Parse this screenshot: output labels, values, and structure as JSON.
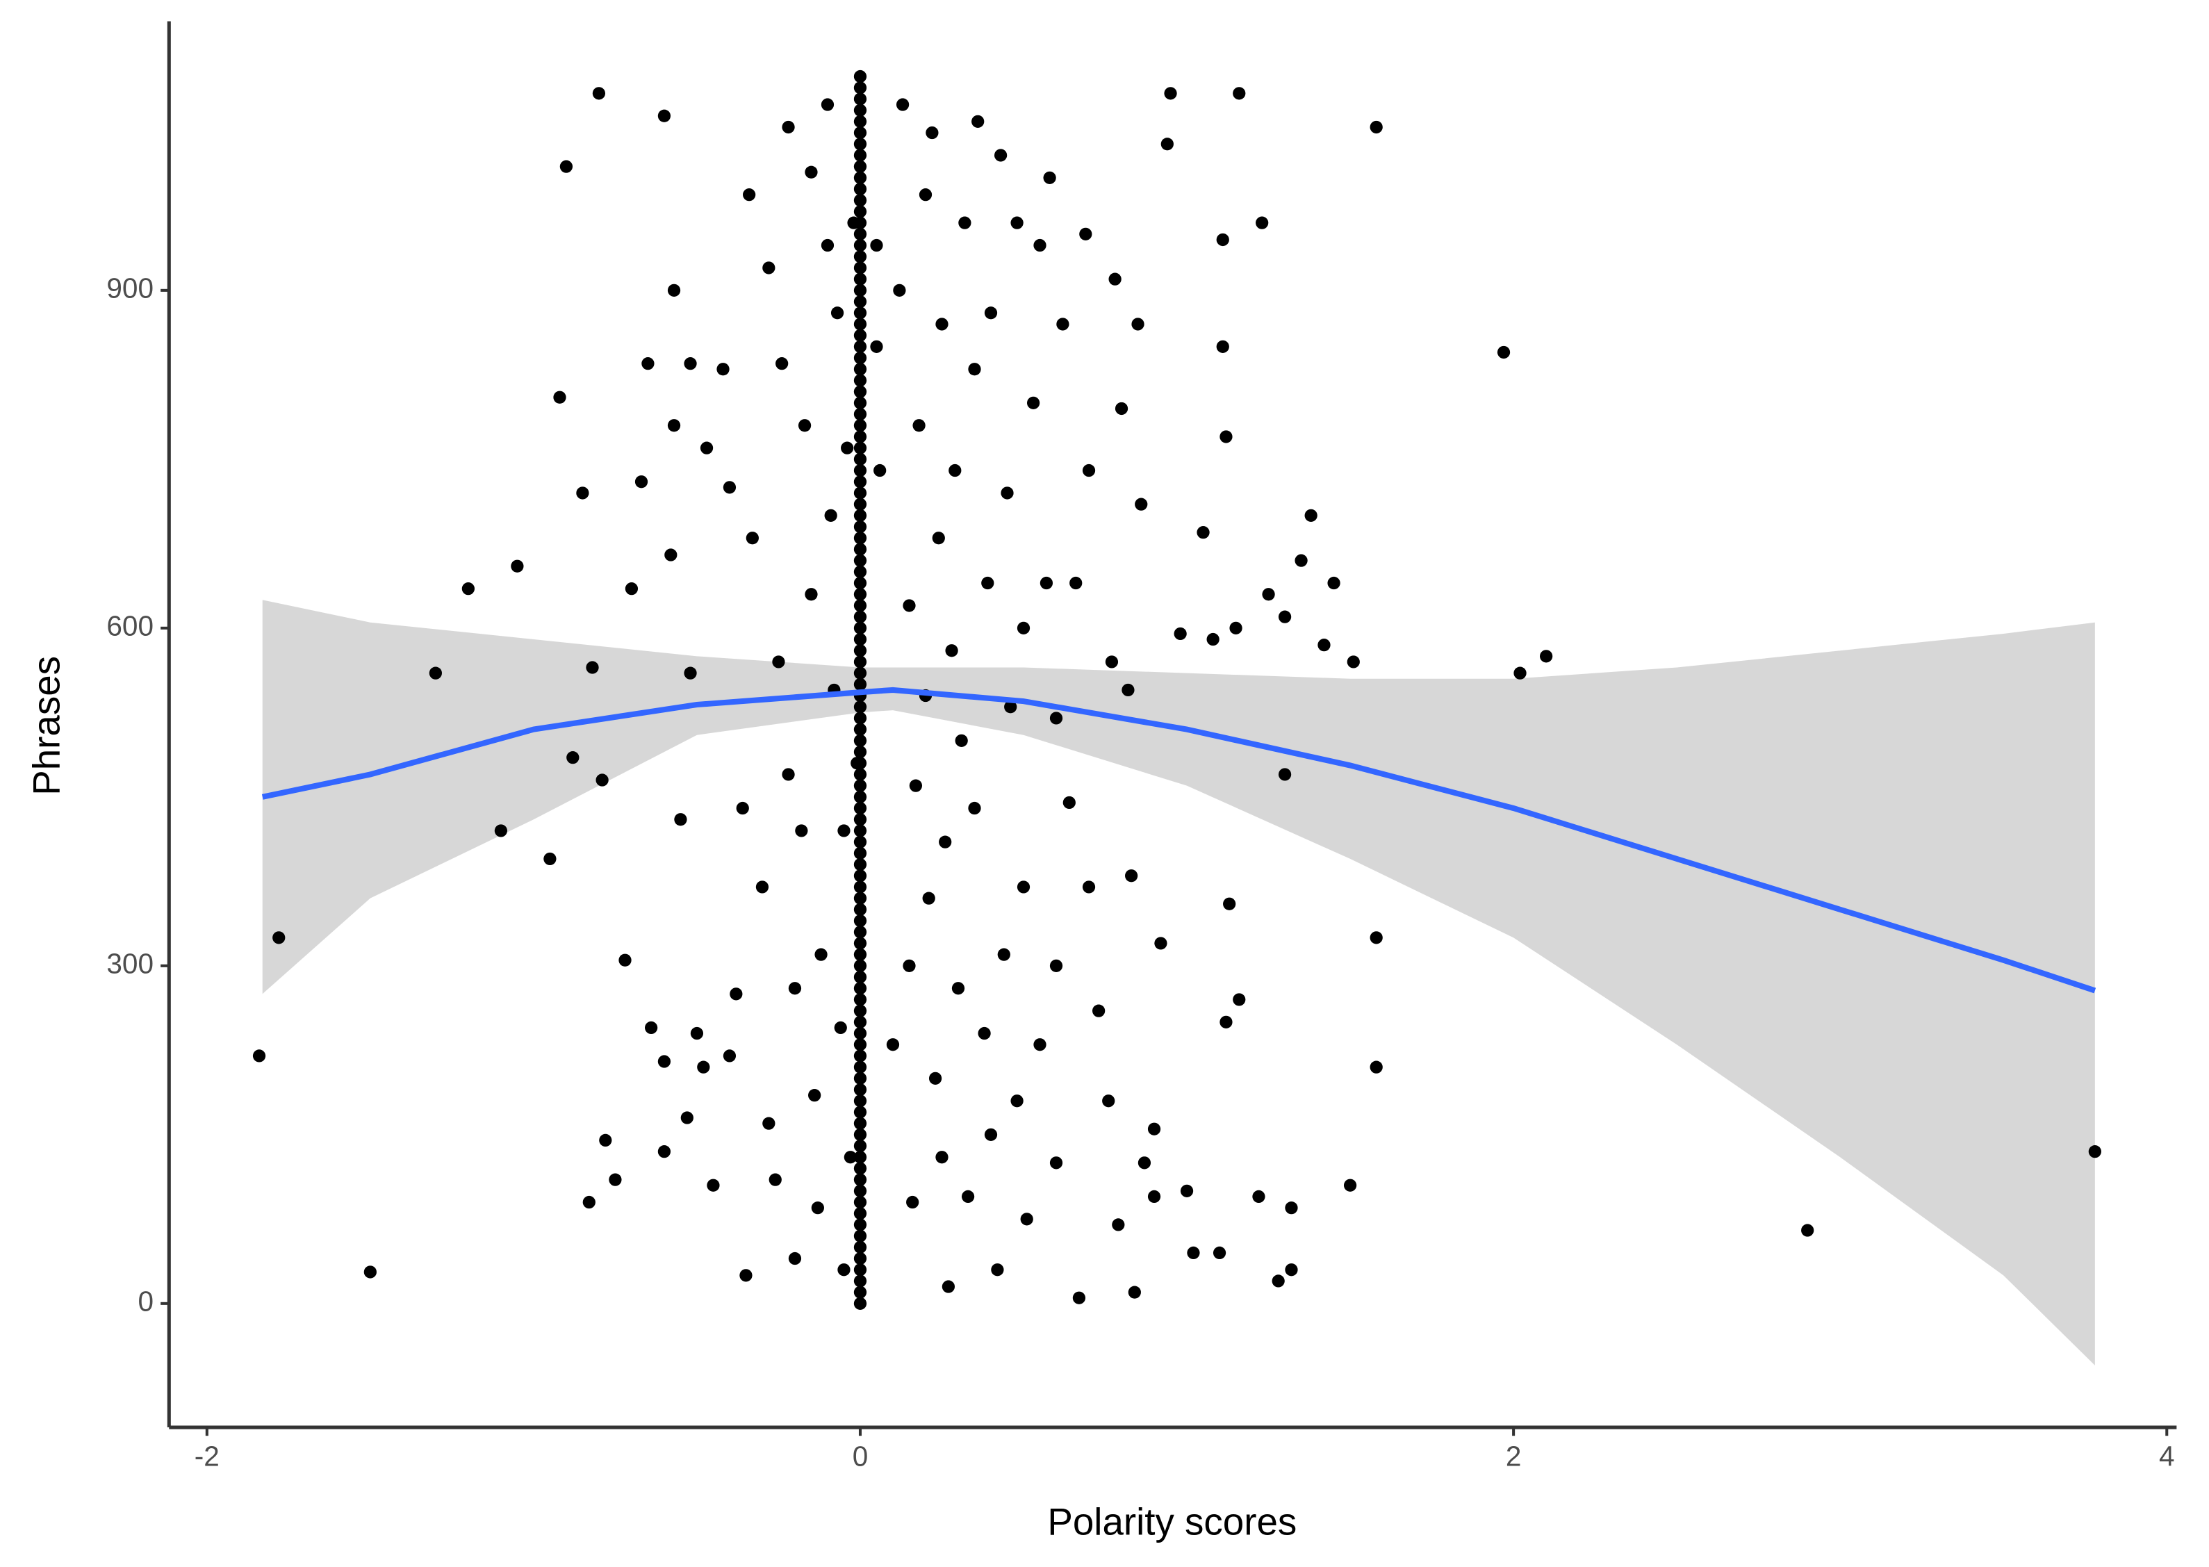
{
  "chart_data": {
    "type": "scatter",
    "xlabel": "Polarity scores",
    "ylabel": "Phrases",
    "xlim": [
      -2.116,
      4.03
    ],
    "ylim": [
      -110,
      1139
    ],
    "xticks": [
      -2,
      0,
      2,
      4
    ],
    "yticks": [
      0,
      300,
      600,
      900
    ],
    "grid": false,
    "series": [
      {
        "color": "#000000",
        "x": [
          -1.84,
          -1.78,
          -1.5,
          -1.3,
          -1.2,
          -1.1,
          -1.05,
          -0.95,
          -0.92,
          -0.9,
          -0.88,
          -0.85,
          -0.83,
          -0.82,
          -0.8,
          -0.79,
          -0.78,
          -0.75,
          -0.72,
          -0.7,
          -0.67,
          -0.65,
          -0.64,
          -0.6,
          -0.6,
          -0.6,
          -0.58,
          -0.57,
          -0.57,
          -0.55,
          -0.53,
          -0.52,
          -0.52,
          -0.5,
          -0.48,
          -0.47,
          -0.45,
          -0.42,
          -0.4,
          -0.4,
          -0.38,
          -0.36,
          -0.35,
          -0.34,
          -0.33,
          -0.3,
          -0.28,
          -0.28,
          -0.26,
          -0.25,
          -0.24,
          -0.22,
          -0.22,
          -0.2,
          -0.2,
          -0.18,
          -0.17,
          -0.15,
          -0.15,
          -0.14,
          -0.13,
          -0.12,
          -0.1,
          -0.1,
          -0.09,
          -0.08,
          -0.07,
          -0.06,
          -0.05,
          -0.05,
          -0.04,
          -0.03,
          -0.02,
          -0.01,
          0.05,
          0.05,
          0.06,
          0.1,
          0.12,
          0.13,
          0.15,
          0.15,
          0.16,
          0.17,
          0.18,
          0.2,
          0.2,
          0.21,
          0.22,
          0.23,
          0.24,
          0.25,
          0.25,
          0.26,
          0.27,
          0.28,
          0.29,
          0.3,
          0.31,
          0.32,
          0.33,
          0.35,
          0.35,
          0.36,
          0.38,
          0.39,
          0.4,
          0.4,
          0.42,
          0.43,
          0.44,
          0.45,
          0.46,
          0.48,
          0.48,
          0.5,
          0.5,
          0.51,
          0.53,
          0.55,
          0.55,
          0.57,
          0.58,
          0.6,
          0.6,
          0.6,
          0.62,
          0.64,
          0.66,
          0.67,
          0.69,
          0.7,
          0.7,
          0.73,
          0.76,
          0.77,
          0.78,
          0.79,
          0.8,
          0.82,
          0.83,
          0.84,
          0.85,
          0.86,
          0.87,
          0.9,
          0.9,
          0.92,
          0.95,
          0.94,
          0.98,
          1.0,
          1.02,
          1.05,
          1.08,
          1.1,
          1.11,
          1.11,
          1.12,
          1.12,
          1.13,
          1.15,
          1.16,
          1.16,
          1.22,
          1.23,
          1.25,
          1.28,
          1.3,
          1.3,
          1.32,
          1.32,
          1.35,
          1.38,
          1.42,
          1.45,
          1.51,
          1.5,
          1.58,
          1.58,
          1.58,
          1.97,
          2.02,
          2.1,
          2.9,
          3.78
        ],
        "y": [
          220,
          325,
          28,
          560,
          635,
          420,
          655,
          395,
          805,
          1010,
          485,
          720,
          90,
          565,
          1075,
          465,
          145,
          110,
          305,
          635,
          730,
          835,
          245,
          1055,
          135,
          215,
          665,
          780,
          900,
          430,
          165,
          835,
          560,
          240,
          210,
          760,
          105,
          830,
          725,
          220,
          275,
          440,
          25,
          985,
          680,
          370,
          160,
          920,
          110,
          570,
          835,
          1045,
          470,
          40,
          280,
          420,
          780,
          1005,
          630,
          185,
          85,
          310,
          940,
          1065,
          700,
          545,
          880,
          245,
          420,
          30,
          760,
          130,
          960,
          480,
          940,
          850,
          740,
          230,
          900,
          1065,
          620,
          300,
          90,
          460,
          780,
          985,
          540,
          360,
          1040,
          200,
          680,
          130,
          870,
          410,
          15,
          580,
          740,
          280,
          500,
          960,
          95,
          830,
          440,
          1050,
          240,
          640,
          880,
          150,
          30,
          1020,
          310,
          720,
          530,
          180,
          960,
          370,
          600,
          75,
          800,
          940,
          230,
          640,
          1000,
          125,
          520,
          300,
          870,
          445,
          640,
          5,
          950,
          370,
          740,
          260,
          180,
          570,
          910,
          70,
          795,
          545,
          380,
          10,
          870,
          710,
          125,
          155,
          95,
          320,
          1075,
          1030,
          595,
          100,
          45,
          685,
          590,
          45,
          945,
          850,
          250,
          770,
          355,
          600,
          270,
          1075,
          95,
          960,
          630,
          20,
          610,
          470,
          30,
          85,
          660,
          700,
          585,
          640,
          570,
          105,
          1045,
          325,
          210,
          845,
          560,
          575,
          65,
          135
        ]
      },
      {
        "color": "#000000",
        "x": [
          0,
          0,
          0,
          0,
          0,
          0,
          0,
          0,
          0,
          0,
          0,
          0,
          0,
          0,
          0,
          0,
          0,
          0,
          0,
          0,
          0,
          0,
          0,
          0,
          0,
          0,
          0,
          0,
          0,
          0,
          0,
          0,
          0,
          0,
          0,
          0,
          0,
          0,
          0,
          0,
          0,
          0,
          0,
          0,
          0,
          0,
          0,
          0,
          0,
          0,
          0,
          0,
          0,
          0,
          0,
          0,
          0,
          0,
          0,
          0,
          0,
          0,
          0,
          0,
          0,
          0,
          0,
          0,
          0,
          0,
          0,
          0,
          0,
          0,
          0,
          0,
          0,
          0,
          0,
          0,
          0,
          0,
          0,
          0,
          0,
          0,
          0,
          0,
          0,
          0,
          0,
          0,
          0,
          0,
          0,
          0,
          0,
          0,
          0,
          0,
          0,
          0,
          0,
          0,
          0,
          0,
          0,
          0,
          0,
          0
        ],
        "y": [
          0,
          10,
          20,
          30,
          40,
          50,
          60,
          70,
          80,
          90,
          100,
          110,
          120,
          130,
          140,
          150,
          160,
          170,
          180,
          190,
          200,
          210,
          220,
          230,
          240,
          250,
          260,
          270,
          280,
          290,
          300,
          310,
          320,
          330,
          340,
          350,
          360,
          370,
          380,
          390,
          400,
          410,
          420,
          430,
          440,
          450,
          460,
          470,
          480,
          490,
          500,
          510,
          520,
          530,
          540,
          550,
          560,
          570,
          580,
          590,
          600,
          610,
          620,
          630,
          640,
          650,
          660,
          670,
          680,
          690,
          700,
          710,
          720,
          730,
          740,
          750,
          760,
          770,
          780,
          790,
          800,
          810,
          820,
          830,
          840,
          850,
          860,
          870,
          880,
          890,
          900,
          910,
          920,
          930,
          940,
          950,
          960,
          970,
          980,
          990,
          1000,
          1010,
          1020,
          1030,
          1040,
          1050,
          1060,
          1070,
          1080,
          1090
        ]
      }
    ],
    "fit": {
      "color": "#3366ff",
      "band_color": "#d3d3d3",
      "x": [
        -1.83,
        -1.5,
        -1,
        -0.5,
        0,
        0.1,
        0.5,
        1,
        1.5,
        2,
        2.5,
        3,
        3.5,
        3.78
      ],
      "y": [
        450,
        470,
        510,
        532,
        543,
        545,
        535,
        510,
        478,
        440,
        395,
        350,
        305,
        278
      ],
      "upper": [
        625,
        605,
        590,
        575,
        565,
        565,
        565,
        560,
        555,
        555,
        565,
        580,
        595,
        605
      ],
      "lower": [
        275,
        360,
        430,
        505,
        525,
        527,
        505,
        460,
        395,
        325,
        230,
        130,
        25,
        -55
      ]
    }
  }
}
